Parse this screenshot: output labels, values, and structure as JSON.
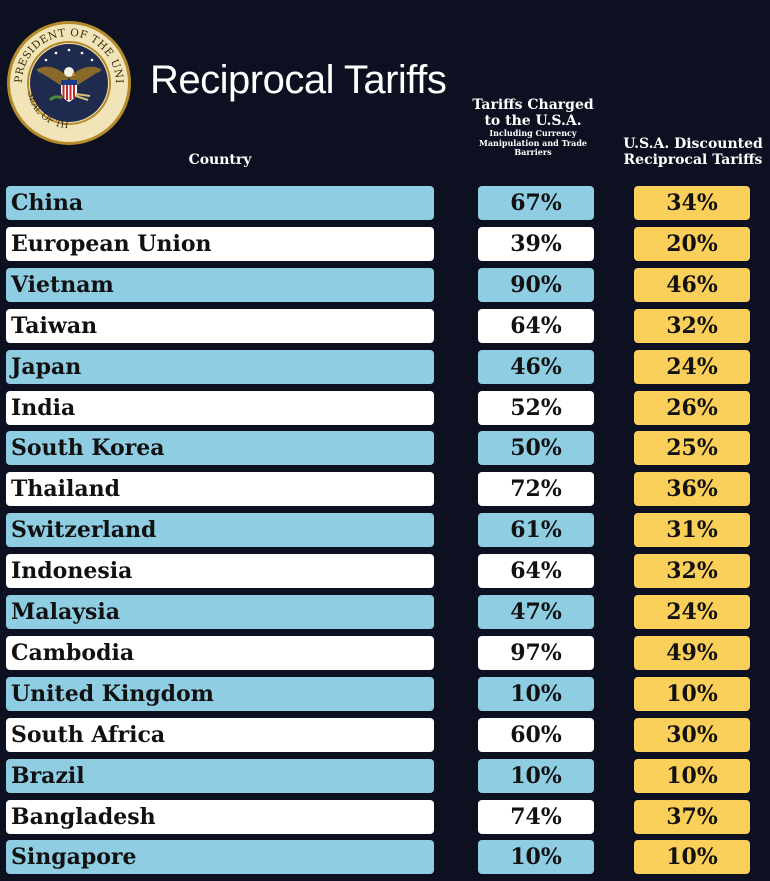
{
  "header": {
    "title": "Reciprocal Tariffs",
    "seal_text_top": "PRESIDENT OF THE UNITED STATES",
    "seal_text_bottom": "SEAL OF THE"
  },
  "colors": {
    "background": "#0d1020",
    "row_blue": "#8fcde2",
    "row_white": "#ffffff",
    "discount_yellow": "#fad05b"
  },
  "chart_data": {
    "type": "table",
    "columns": [
      "Country",
      "Tariffs Charged to the U.S.A.",
      "U.S.A. Discounted Reciprocal Tariffs"
    ],
    "column_note": "Including Currency Manipulation and Trade Barriers",
    "rows": [
      {
        "country": "China",
        "charged": "67%",
        "discounted": "34%"
      },
      {
        "country": "European Union",
        "charged": "39%",
        "discounted": "20%"
      },
      {
        "country": "Vietnam",
        "charged": "90%",
        "discounted": "46%"
      },
      {
        "country": "Taiwan",
        "charged": "64%",
        "discounted": "32%"
      },
      {
        "country": "Japan",
        "charged": "46%",
        "discounted": "24%"
      },
      {
        "country": "India",
        "charged": "52%",
        "discounted": "26%"
      },
      {
        "country": "South Korea",
        "charged": "50%",
        "discounted": "25%"
      },
      {
        "country": "Thailand",
        "charged": "72%",
        "discounted": "36%"
      },
      {
        "country": "Switzerland",
        "charged": "61%",
        "discounted": "31%"
      },
      {
        "country": "Indonesia",
        "charged": "64%",
        "discounted": "32%"
      },
      {
        "country": "Malaysia",
        "charged": "47%",
        "discounted": "24%"
      },
      {
        "country": "Cambodia",
        "charged": "97%",
        "discounted": "49%"
      },
      {
        "country": "United Kingdom",
        "charged": "10%",
        "discounted": "10%"
      },
      {
        "country": "South Africa",
        "charged": "60%",
        "discounted": "30%"
      },
      {
        "country": "Brazil",
        "charged": "10%",
        "discounted": "10%"
      },
      {
        "country": "Bangladesh",
        "charged": "74%",
        "discounted": "37%"
      },
      {
        "country": "Singapore",
        "charged": "10%",
        "discounted": "10%"
      }
    ]
  }
}
